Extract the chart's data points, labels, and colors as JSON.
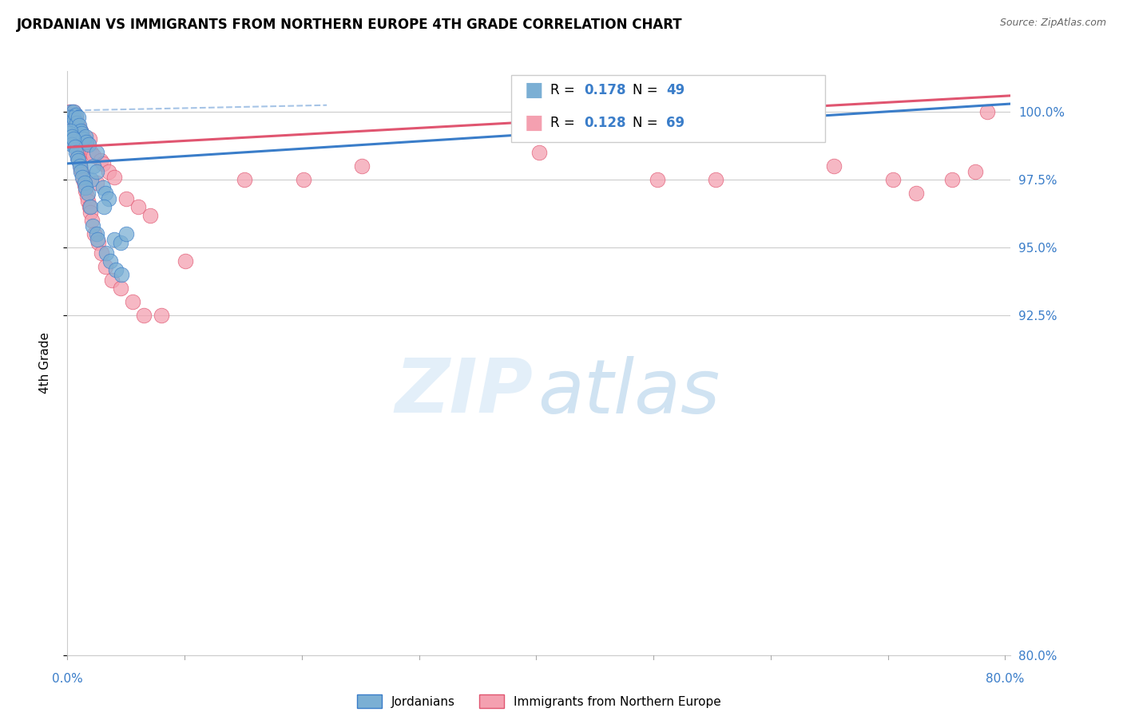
{
  "title": "JORDANIAN VS IMMIGRANTS FROM NORTHERN EUROPE 4TH GRADE CORRELATION CHART",
  "source": "Source: ZipAtlas.com",
  "ylabel": "4th Grade",
  "xlim": [
    0.0,
    80.0
  ],
  "ylim": [
    80.0,
    101.5
  ],
  "yticks": [
    80.0,
    92.5,
    95.0,
    97.5,
    100.0
  ],
  "ytick_labels": [
    "80.0%",
    "92.5%",
    "95.0%",
    "97.5%",
    "100.0%"
  ],
  "xticks": [
    0.0,
    10.0,
    20.0,
    30.0,
    40.0,
    50.0,
    60.0,
    70.0,
    80.0
  ],
  "series1_color": "#7bafd4",
  "series2_color": "#f4a0b0",
  "trend1_color": "#3a7dc9",
  "trend2_color": "#e05570",
  "R1": 0.178,
  "N1": 49,
  "R2": 0.128,
  "N2": 69,
  "series1_label": "Jordanians",
  "series2_label": "Immigrants from Northern Europe",
  "series1_x": [
    0.2,
    0.3,
    0.5,
    0.5,
    0.6,
    0.7,
    0.8,
    0.9,
    1.0,
    1.1,
    1.2,
    1.3,
    1.5,
    1.6,
    1.8,
    2.0,
    2.2,
    2.5,
    2.5,
    3.0,
    3.2,
    3.5,
    4.0,
    4.5,
    5.0,
    0.15,
    0.25,
    0.35,
    0.4,
    0.55,
    0.65,
    0.75,
    0.85,
    0.95,
    1.05,
    1.15,
    1.25,
    1.45,
    1.55,
    1.75,
    1.95,
    2.15,
    2.45,
    2.55,
    3.1,
    3.3,
    3.6,
    4.1,
    4.6
  ],
  "series1_y": [
    99.5,
    100.0,
    99.8,
    100.0,
    99.7,
    99.9,
    99.6,
    99.8,
    99.5,
    99.3,
    99.2,
    99.0,
    99.1,
    98.9,
    98.8,
    97.5,
    98.0,
    97.8,
    98.5,
    97.2,
    97.0,
    96.8,
    95.3,
    95.2,
    95.5,
    99.2,
    99.3,
    99.1,
    98.8,
    99.0,
    98.7,
    98.5,
    98.3,
    98.2,
    98.0,
    97.8,
    97.6,
    97.4,
    97.2,
    97.0,
    96.5,
    95.8,
    95.5,
    95.3,
    96.5,
    94.8,
    94.5,
    94.2,
    94.0
  ],
  "series2_x": [
    0.2,
    0.3,
    0.4,
    0.5,
    0.6,
    0.7,
    0.8,
    0.9,
    1.0,
    1.1,
    1.2,
    1.3,
    1.4,
    1.5,
    1.6,
    1.7,
    1.8,
    1.9,
    2.0,
    2.2,
    2.5,
    2.8,
    3.0,
    3.5,
    4.0,
    5.0,
    6.0,
    7.0,
    20.0,
    50.0,
    78.0,
    0.25,
    0.35,
    0.45,
    0.55,
    0.65,
    0.75,
    0.85,
    0.95,
    1.05,
    1.15,
    1.25,
    1.35,
    1.45,
    1.55,
    1.65,
    1.75,
    1.85,
    1.95,
    2.1,
    2.3,
    2.6,
    2.9,
    3.2,
    3.8,
    4.5,
    5.5,
    6.5,
    8.0,
    10.0,
    15.0,
    25.0,
    40.0,
    55.0,
    65.0,
    70.0,
    72.0,
    75.0,
    77.0
  ],
  "series2_y": [
    100.0,
    99.9,
    99.8,
    100.0,
    99.7,
    99.8,
    99.6,
    99.5,
    99.4,
    99.3,
    99.2,
    99.1,
    99.0,
    98.9,
    98.8,
    98.7,
    98.6,
    99.0,
    98.5,
    98.4,
    97.4,
    98.2,
    98.1,
    97.8,
    97.6,
    96.8,
    96.5,
    96.2,
    97.5,
    97.5,
    100.0,
    99.5,
    99.6,
    99.3,
    99.1,
    98.9,
    98.7,
    98.5,
    98.3,
    98.1,
    97.9,
    97.7,
    97.5,
    97.3,
    97.1,
    96.9,
    96.7,
    96.5,
    96.3,
    96.0,
    95.5,
    95.2,
    94.8,
    94.3,
    93.8,
    93.5,
    93.0,
    92.5,
    92.5,
    94.5,
    97.5,
    98.0,
    98.5,
    97.5,
    98.0,
    97.5,
    97.0,
    97.5,
    97.8
  ],
  "trend1_x0": 0.0,
  "trend1_y0": 98.1,
  "trend1_x1": 80.0,
  "trend1_y1": 100.3,
  "trend2_x0": 0.0,
  "trend2_y0": 98.7,
  "trend2_x1": 80.0,
  "trend2_y1": 100.6,
  "dash_x0": 0.0,
  "dash_y0": 100.05,
  "dash_x1": 22.0,
  "dash_y1": 100.25
}
